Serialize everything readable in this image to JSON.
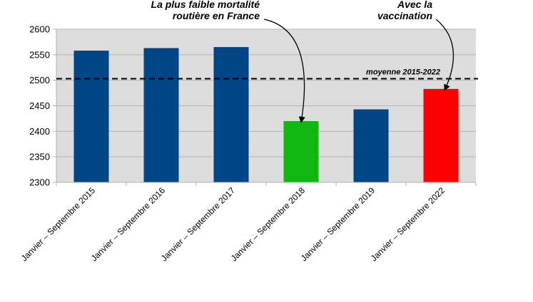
{
  "chart_data": {
    "type": "bar",
    "categories": [
      "Janvier – Septembre 2015",
      "Janvier – Septembre 2016",
      "Janvier – Septembre 2017",
      "Janvier – Septembre 2018",
      "Janvier – Septembre 2019",
      "Janvier – Septembre 2022"
    ],
    "values": [
      2558,
      2563,
      2565,
      2420,
      2443,
      2483
    ],
    "bar_colors": [
      "#004586",
      "#004586",
      "#004586",
      "#11b711",
      "#004586",
      "#ff0000"
    ],
    "ylim": [
      2300,
      2600
    ],
    "yticks": [
      2300,
      2350,
      2400,
      2450,
      2500,
      2550,
      2600
    ],
    "grid": true,
    "plot_background": "#dddddd",
    "reference_line": {
      "value": 2503,
      "label": "moyenne 2015-2022",
      "style": "dashed"
    },
    "annotations": [
      {
        "lines": [
          "La plus faible mortalité",
          "routière en France"
        ],
        "target_category": "Janvier – Septembre 2018"
      },
      {
        "lines": [
          "Avec la",
          "vaccination"
        ],
        "target_category": "Janvier – Septembre 2022"
      }
    ]
  }
}
